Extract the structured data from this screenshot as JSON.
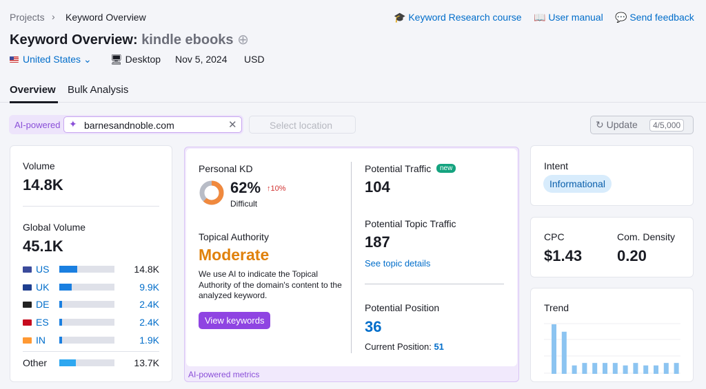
{
  "breadcrumb": [
    "Projects",
    "Keyword Overview"
  ],
  "header_links": [
    "Keyword Research course",
    "User manual",
    "Send feedback"
  ],
  "title": "Keyword Overview:",
  "keyword": "kindle ebooks",
  "filters": {
    "country": "United States",
    "device": "Desktop",
    "date": "Nov 5, 2024",
    "currency": "USD"
  },
  "tabs": [
    "Overview",
    "Bulk Analysis"
  ],
  "search": {
    "badge": "AI-powered",
    "domain": "barnesandnoble.com",
    "location": "Select location",
    "update": "Update",
    "quota": "4/5,000"
  },
  "volume": {
    "label": "Volume",
    "value": "14.8K"
  },
  "global_volume": {
    "label": "Global Volume",
    "value": "45.1K",
    "countries": [
      {
        "code": "US",
        "value": "14.8K",
        "share": 33
      },
      {
        "code": "UK",
        "value": "9.9K",
        "share": 22
      },
      {
        "code": "DE",
        "value": "2.4K",
        "share": 5
      },
      {
        "code": "ES",
        "value": "2.4K",
        "share": 5
      },
      {
        "code": "IN",
        "value": "1.9K",
        "share": 5
      }
    ],
    "other": {
      "label": "Other",
      "value": "13.7K",
      "share": 30
    }
  },
  "personal_kd": {
    "label": "Personal KD",
    "value": 62,
    "value_label": "62%",
    "change": "10%",
    "level": "Difficult"
  },
  "topical_authority": {
    "label": "Topical Authority",
    "value": "Moderate",
    "description": "We use AI to indicate the Topical Authority of the domain's content to the analyzed keyword.",
    "button": "View keywords"
  },
  "potential_traffic": {
    "label": "Potential Traffic",
    "badge": "new",
    "value": "104"
  },
  "potential_topic_traffic": {
    "label": "Potential Topic Traffic",
    "value": "187",
    "link": "See topic details"
  },
  "potential_position": {
    "label": "Potential Position",
    "value": "36",
    "current_label": "Current Position:",
    "current_value": "51"
  },
  "ai_footer": "AI-powered metrics",
  "intent": {
    "label": "Intent",
    "value": "Informational"
  },
  "cpc": {
    "label": "CPC",
    "value": "$1.43"
  },
  "density": {
    "label": "Com. Density",
    "value": "0.20"
  },
  "trend": {
    "label": "Trend",
    "values": [
      100,
      85,
      17,
      22,
      22,
      22,
      22,
      17,
      22,
      17,
      17,
      22,
      22
    ]
  }
}
